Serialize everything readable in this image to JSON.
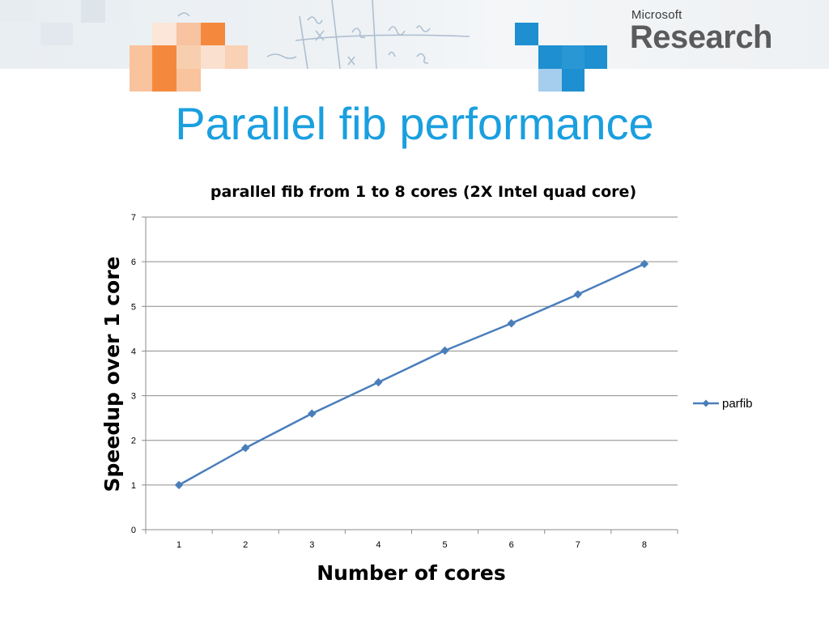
{
  "slide": {
    "title": "Parallel fib performance",
    "logo_small": "Microsoft",
    "logo_big": "Research",
    "accent_color": "#1a9fdf"
  },
  "chart_data": {
    "type": "line",
    "title": "parallel fib from 1 to 8 cores (2X Intel quad core)",
    "xlabel": "Number of cores",
    "ylabel": "Speedup over 1 core",
    "categories": [
      "1",
      "2",
      "3",
      "4",
      "5",
      "6",
      "7",
      "8"
    ],
    "ylim": [
      0,
      7
    ],
    "yticks": [
      "0",
      "1",
      "2",
      "3",
      "4",
      "5",
      "6",
      "7"
    ],
    "grid": true,
    "legend_position": "right",
    "series": [
      {
        "name": "parfib",
        "color": "#4a7ebb",
        "marker": "diamond",
        "values": [
          1.0,
          1.83,
          2.6,
          3.3,
          4.01,
          4.62,
          5.27,
          5.95
        ]
      }
    ]
  }
}
